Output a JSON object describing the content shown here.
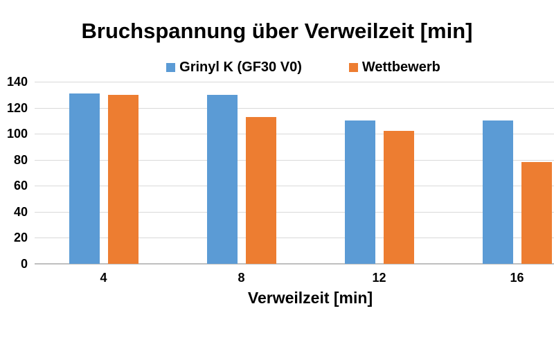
{
  "chart_data": {
    "type": "bar",
    "title": "Bruchspannung über Verweilzeit [min]",
    "categories": [
      "4",
      "8",
      "12",
      "16"
    ],
    "series": [
      {
        "name": "Grinyl K (GF30 V0)",
        "color": "#5B9BD5",
        "values": [
          131,
          130,
          110,
          110
        ]
      },
      {
        "name": "Wettbewerb",
        "color": "#ED7D31",
        "values": [
          130,
          113,
          102,
          78
        ]
      }
    ],
    "xlabel": "Verweilzeit [min]",
    "ylabel": "",
    "ylim": [
      0,
      140
    ],
    "ytick_step": 20,
    "grid": true,
    "legend_position": "top-center",
    "colors": {
      "gridline": "#D9D9D9",
      "axis_line": "#BFBFBF",
      "text": "#000000",
      "background": "#FFFFFF"
    }
  }
}
